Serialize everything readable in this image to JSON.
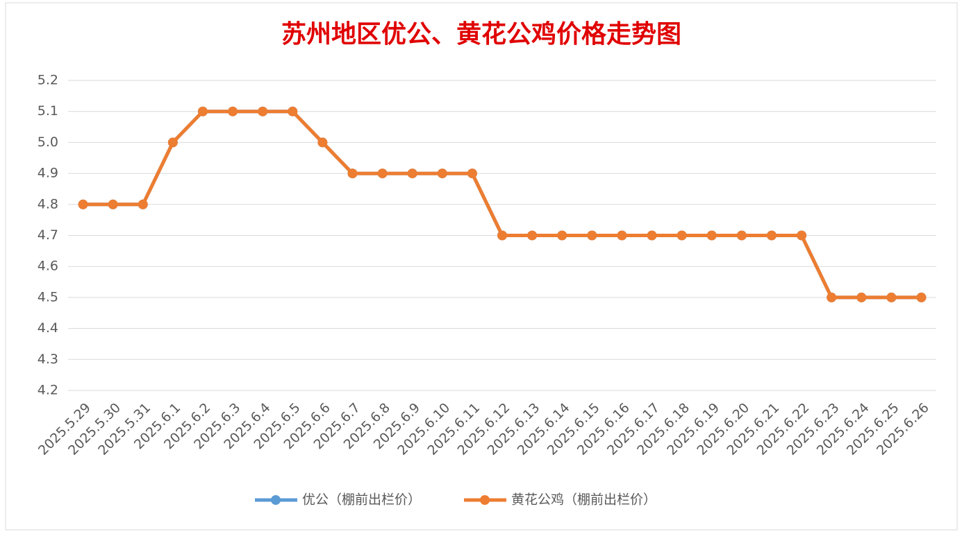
{
  "chart_data": {
    "type": "line",
    "title": "苏州地区优公、黄花公鸡价格走势图",
    "categories": [
      "2025.5.29",
      "2025.5.30",
      "2025.5.31",
      "2025.6.1",
      "2025.6.2",
      "2025.6.3",
      "2025.6.4",
      "2025.6.5",
      "2025.6.6",
      "2025.6.7",
      "2025.6.8",
      "2025.6.9",
      "2025.6.10",
      "2025.6.11",
      "2025.6.12",
      "2025.6.13",
      "2025.6.14",
      "2025.6.15",
      "2025.6.16",
      "2025.6.17",
      "2025.6.18",
      "2025.6.19",
      "2025.6.20",
      "2025.6.21",
      "2025.6.22",
      "2025.6.23",
      "2025.6.24",
      "2025.6.25",
      "2025.6.26"
    ],
    "series": [
      {
        "name": "优公（棚前出栏价）",
        "color": "#5b9bd5",
        "values": [
          4.8,
          4.8,
          4.8,
          5.0,
          5.1,
          5.1,
          5.1,
          5.1,
          5.0,
          4.9,
          4.9,
          4.9,
          4.9,
          4.9,
          4.7,
          4.7,
          4.7,
          4.7,
          4.7,
          4.7,
          4.7,
          4.7,
          4.7,
          4.7,
          4.7,
          4.5,
          4.5,
          4.5,
          4.5
        ]
      },
      {
        "name": "黄花公鸡（棚前出栏价）",
        "color": "#ed7d31",
        "values": [
          4.8,
          4.8,
          4.8,
          5.0,
          5.1,
          5.1,
          5.1,
          5.1,
          5.0,
          4.9,
          4.9,
          4.9,
          4.9,
          4.9,
          4.7,
          4.7,
          4.7,
          4.7,
          4.7,
          4.7,
          4.7,
          4.7,
          4.7,
          4.7,
          4.7,
          4.5,
          4.5,
          4.5,
          4.5
        ]
      }
    ],
    "ylim": [
      4.2,
      5.2
    ],
    "yticks": [
      4.2,
      4.3,
      4.4,
      4.5,
      4.6,
      4.7,
      4.8,
      4.9,
      {
        "value": 5,
        "label": "5.0"
      },
      5.1,
      5.2
    ],
    "grid": true,
    "legend": "bottom"
  }
}
